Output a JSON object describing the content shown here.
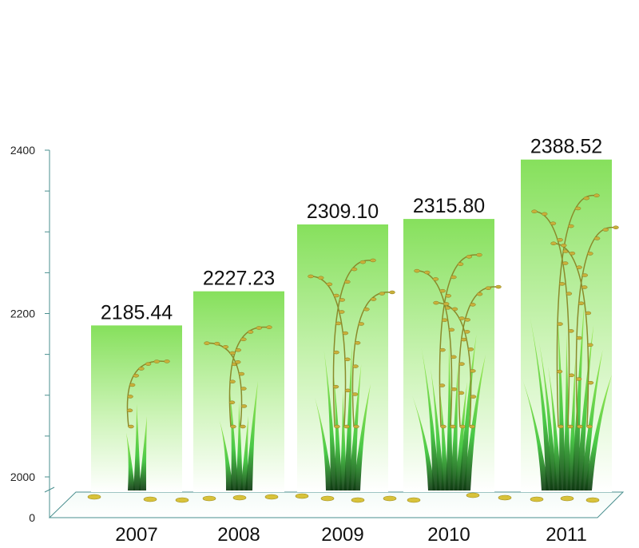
{
  "chart_data": {
    "type": "bar",
    "categories": [
      "2007",
      "2008",
      "2009",
      "2010",
      "2011"
    ],
    "values": [
      2185.44,
      2227.23,
      2309.1,
      2315.8,
      2388.52
    ],
    "value_labels": [
      "2185.44",
      "2227.23",
      "2309.10",
      "2315.80",
      "2388.52"
    ],
    "y_tick_labels": [
      "2400",
      "2200",
      "2000",
      "0"
    ],
    "y_axis_break": true,
    "ylim": [
      2000,
      2400
    ],
    "grid": false,
    "bar_color": "#8ee36a",
    "axis_color": "#4a8f8f",
    "decoration": "rice-plants"
  }
}
